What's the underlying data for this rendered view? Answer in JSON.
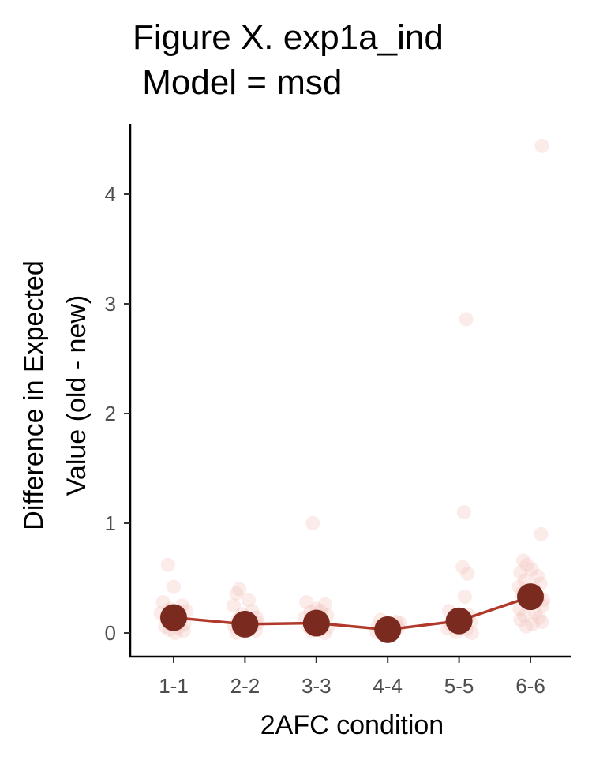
{
  "chart_data": {
    "type": "scatter",
    "title_line1": "Figure X. exp1a_ind",
    "title_line2": " Model = msd",
    "xlabel": "2AFC condition",
    "ylabel_line1": "Difference in Expected",
    "ylabel_line2": "Value (old - new)",
    "categories": [
      "1-1",
      "2-2",
      "3-3",
      "4-4",
      "5-5",
      "6-6"
    ],
    "ylim": [
      -0.2,
      4.65
    ],
    "yticks": [
      0,
      1,
      2,
      3,
      4
    ],
    "ytick_labels": [
      "0",
      "1",
      "2",
      "3",
      "4"
    ],
    "grid": false,
    "legend": "none",
    "colors": {
      "mean_point": "#7b2a20",
      "mean_line": "#b0392b",
      "raw_point": "#f4c6c0"
    },
    "series": [
      {
        "values": [
          0.14,
          0.08,
          0.09,
          0.03,
          0.11,
          0.33
        ]
      }
    ],
    "raw_points": [
      {
        "c": 0,
        "y": 0.62,
        "dx": -0.08
      },
      {
        "c": 0,
        "y": 0.42,
        "dx": 0.0
      },
      {
        "c": 0,
        "y": 0.28,
        "dx": -0.15
      },
      {
        "c": 0,
        "y": 0.25,
        "dx": 0.12
      },
      {
        "c": 0,
        "y": 0.22,
        "dx": -0.05
      },
      {
        "c": 0,
        "y": 0.2,
        "dx": 0.18
      },
      {
        "c": 0,
        "y": 0.18,
        "dx": -0.18
      },
      {
        "c": 0,
        "y": 0.16,
        "dx": 0.05
      },
      {
        "c": 0,
        "y": 0.14,
        "dx": -0.1
      },
      {
        "c": 0,
        "y": 0.12,
        "dx": 0.1
      },
      {
        "c": 0,
        "y": 0.1,
        "dx": -0.02
      },
      {
        "c": 0,
        "y": 0.08,
        "dx": 0.15
      },
      {
        "c": 0,
        "y": 0.06,
        "dx": -0.12
      },
      {
        "c": 0,
        "y": 0.05,
        "dx": 0.07
      },
      {
        "c": 0,
        "y": 0.03,
        "dx": -0.06
      },
      {
        "c": 0,
        "y": 0.02,
        "dx": 0.14
      },
      {
        "c": 0,
        "y": 0.0,
        "dx": 0.02
      },
      {
        "c": 0,
        "y": 0.19,
        "dx": 0.08
      },
      {
        "c": 1,
        "y": 0.4,
        "dx": -0.08
      },
      {
        "c": 1,
        "y": 0.36,
        "dx": -0.12
      },
      {
        "c": 1,
        "y": 0.3,
        "dx": 0.05
      },
      {
        "c": 1,
        "y": 0.25,
        "dx": -0.16
      },
      {
        "c": 1,
        "y": 0.2,
        "dx": 0.1
      },
      {
        "c": 1,
        "y": 0.17,
        "dx": -0.04
      },
      {
        "c": 1,
        "y": 0.14,
        "dx": 0.16
      },
      {
        "c": 1,
        "y": 0.12,
        "dx": -0.1
      },
      {
        "c": 1,
        "y": 0.1,
        "dx": 0.02
      },
      {
        "c": 1,
        "y": 0.08,
        "dx": 0.12
      },
      {
        "c": 1,
        "y": 0.06,
        "dx": -0.15
      },
      {
        "c": 1,
        "y": 0.05,
        "dx": 0.07
      },
      {
        "c": 1,
        "y": 0.03,
        "dx": -0.06
      },
      {
        "c": 1,
        "y": 0.02,
        "dx": 0.15
      },
      {
        "c": 1,
        "y": 0.01,
        "dx": 0.0
      },
      {
        "c": 1,
        "y": 0.0,
        "dx": -0.12
      },
      {
        "c": 1,
        "y": 0.09,
        "dx": 0.18
      },
      {
        "c": 2,
        "y": 1.0,
        "dx": -0.05
      },
      {
        "c": 2,
        "y": 0.28,
        "dx": -0.14
      },
      {
        "c": 2,
        "y": 0.26,
        "dx": 0.12
      },
      {
        "c": 2,
        "y": 0.22,
        "dx": 0.0
      },
      {
        "c": 2,
        "y": 0.19,
        "dx": -0.08
      },
      {
        "c": 2,
        "y": 0.16,
        "dx": 0.15
      },
      {
        "c": 2,
        "y": 0.14,
        "dx": -0.16
      },
      {
        "c": 2,
        "y": 0.12,
        "dx": 0.07
      },
      {
        "c": 2,
        "y": 0.1,
        "dx": -0.03
      },
      {
        "c": 2,
        "y": 0.08,
        "dx": 0.1
      },
      {
        "c": 2,
        "y": 0.06,
        "dx": -0.12
      },
      {
        "c": 2,
        "y": 0.05,
        "dx": 0.16
      },
      {
        "c": 2,
        "y": 0.03,
        "dx": 0.04
      },
      {
        "c": 2,
        "y": 0.02,
        "dx": -0.07
      },
      {
        "c": 2,
        "y": 0.0,
        "dx": 0.12
      },
      {
        "c": 2,
        "y": 0.2,
        "dx": 0.06
      },
      {
        "c": 3,
        "y": 0.12,
        "dx": -0.1
      },
      {
        "c": 3,
        "y": 0.1,
        "dx": 0.12
      },
      {
        "c": 3,
        "y": 0.08,
        "dx": -0.04
      },
      {
        "c": 3,
        "y": 0.07,
        "dx": 0.08
      },
      {
        "c": 3,
        "y": 0.06,
        "dx": -0.14
      },
      {
        "c": 3,
        "y": 0.05,
        "dx": 0.15
      },
      {
        "c": 3,
        "y": 0.04,
        "dx": 0.02
      },
      {
        "c": 3,
        "y": 0.03,
        "dx": -0.08
      },
      {
        "c": 3,
        "y": 0.02,
        "dx": 0.1
      },
      {
        "c": 3,
        "y": 0.01,
        "dx": -0.16
      },
      {
        "c": 3,
        "y": 0.0,
        "dx": 0.05
      },
      {
        "c": 3,
        "y": -0.01,
        "dx": -0.03
      },
      {
        "c": 3,
        "y": 0.09,
        "dx": 0.17
      },
      {
        "c": 4,
        "y": 2.86,
        "dx": 0.1
      },
      {
        "c": 4,
        "y": 1.1,
        "dx": 0.07
      },
      {
        "c": 4,
        "y": 0.6,
        "dx": 0.05
      },
      {
        "c": 4,
        "y": 0.54,
        "dx": 0.12
      },
      {
        "c": 4,
        "y": 0.33,
        "dx": 0.08
      },
      {
        "c": 4,
        "y": 0.2,
        "dx": -0.14
      },
      {
        "c": 4,
        "y": 0.16,
        "dx": 0.14
      },
      {
        "c": 4,
        "y": 0.12,
        "dx": -0.06
      },
      {
        "c": 4,
        "y": 0.1,
        "dx": 0.16
      },
      {
        "c": 4,
        "y": 0.08,
        "dx": -0.12
      },
      {
        "c": 4,
        "y": 0.06,
        "dx": 0.03
      },
      {
        "c": 4,
        "y": 0.04,
        "dx": -0.16
      },
      {
        "c": 4,
        "y": 0.03,
        "dx": 0.1
      },
      {
        "c": 4,
        "y": 0.01,
        "dx": -0.04
      },
      {
        "c": 4,
        "y": 0.0,
        "dx": 0.18
      },
      {
        "c": 5,
        "y": 4.44,
        "dx": 0.16
      },
      {
        "c": 5,
        "y": 0.9,
        "dx": 0.15
      },
      {
        "c": 5,
        "y": 0.66,
        "dx": -0.1
      },
      {
        "c": 5,
        "y": 0.62,
        "dx": -0.05
      },
      {
        "c": 5,
        "y": 0.58,
        "dx": 0.02
      },
      {
        "c": 5,
        "y": 0.55,
        "dx": -0.14
      },
      {
        "c": 5,
        "y": 0.52,
        "dx": 0.1
      },
      {
        "c": 5,
        "y": 0.48,
        "dx": -0.08
      },
      {
        "c": 5,
        "y": 0.45,
        "dx": 0.14
      },
      {
        "c": 5,
        "y": 0.42,
        "dx": -0.16
      },
      {
        "c": 5,
        "y": 0.4,
        "dx": 0.05
      },
      {
        "c": 5,
        "y": 0.36,
        "dx": -0.12
      },
      {
        "c": 5,
        "y": 0.32,
        "dx": 0.12
      },
      {
        "c": 5,
        "y": 0.28,
        "dx": -0.04
      },
      {
        "c": 5,
        "y": 0.25,
        "dx": 0.17
      },
      {
        "c": 5,
        "y": 0.22,
        "dx": -0.15
      },
      {
        "c": 5,
        "y": 0.19,
        "dx": 0.07
      },
      {
        "c": 5,
        "y": 0.16,
        "dx": -0.09
      },
      {
        "c": 5,
        "y": 0.14,
        "dx": 0.12
      },
      {
        "c": 5,
        "y": 0.12,
        "dx": -0.14
      },
      {
        "c": 5,
        "y": 0.1,
        "dx": 0.16
      },
      {
        "c": 5,
        "y": 0.08,
        "dx": 0.03
      },
      {
        "c": 5,
        "y": 0.06,
        "dx": -0.06
      },
      {
        "c": 5,
        "y": 0.3,
        "dx": 0.18
      }
    ]
  }
}
